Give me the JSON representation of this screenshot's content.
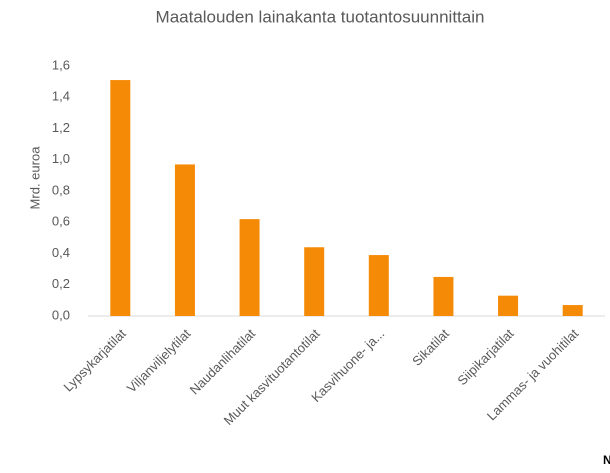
{
  "chart_data": {
    "type": "bar",
    "title": "Maatalouden lainakanta tuotantosuunnittain",
    "y_label": "Mrd. euroa",
    "categories": [
      "Lypsykarjatilat",
      "Viljanviljelytilat",
      "Naudanlihatilat",
      "Muut kasvituotantotilat",
      "Kasvihuone- ja...",
      "Sikatilat",
      "Siipikarjatilat",
      "Lammas- ja vuohitilat"
    ],
    "values": [
      1.51,
      0.97,
      0.62,
      0.44,
      0.39,
      0.25,
      0.13,
      0.07
    ],
    "color": "#f58a07",
    "ylim": [
      0,
      1.6
    ],
    "yticks": [
      {
        "value": 0,
        "label": "0,0"
      },
      {
        "value": 0.2,
        "label": "0,2"
      },
      {
        "value": 0.4,
        "label": "0,4"
      },
      {
        "value": 0.6,
        "label": "0,6"
      },
      {
        "value": 0.8,
        "label": "0,8"
      },
      {
        "value": 1.0,
        "label": "1,0"
      },
      {
        "value": 1.2,
        "label": "1,2"
      },
      {
        "value": 1.4,
        "label": "1,4"
      },
      {
        "value": 1.6,
        "label": "1,6"
      }
    ],
    "grid": false,
    "corner_text": "N"
  }
}
